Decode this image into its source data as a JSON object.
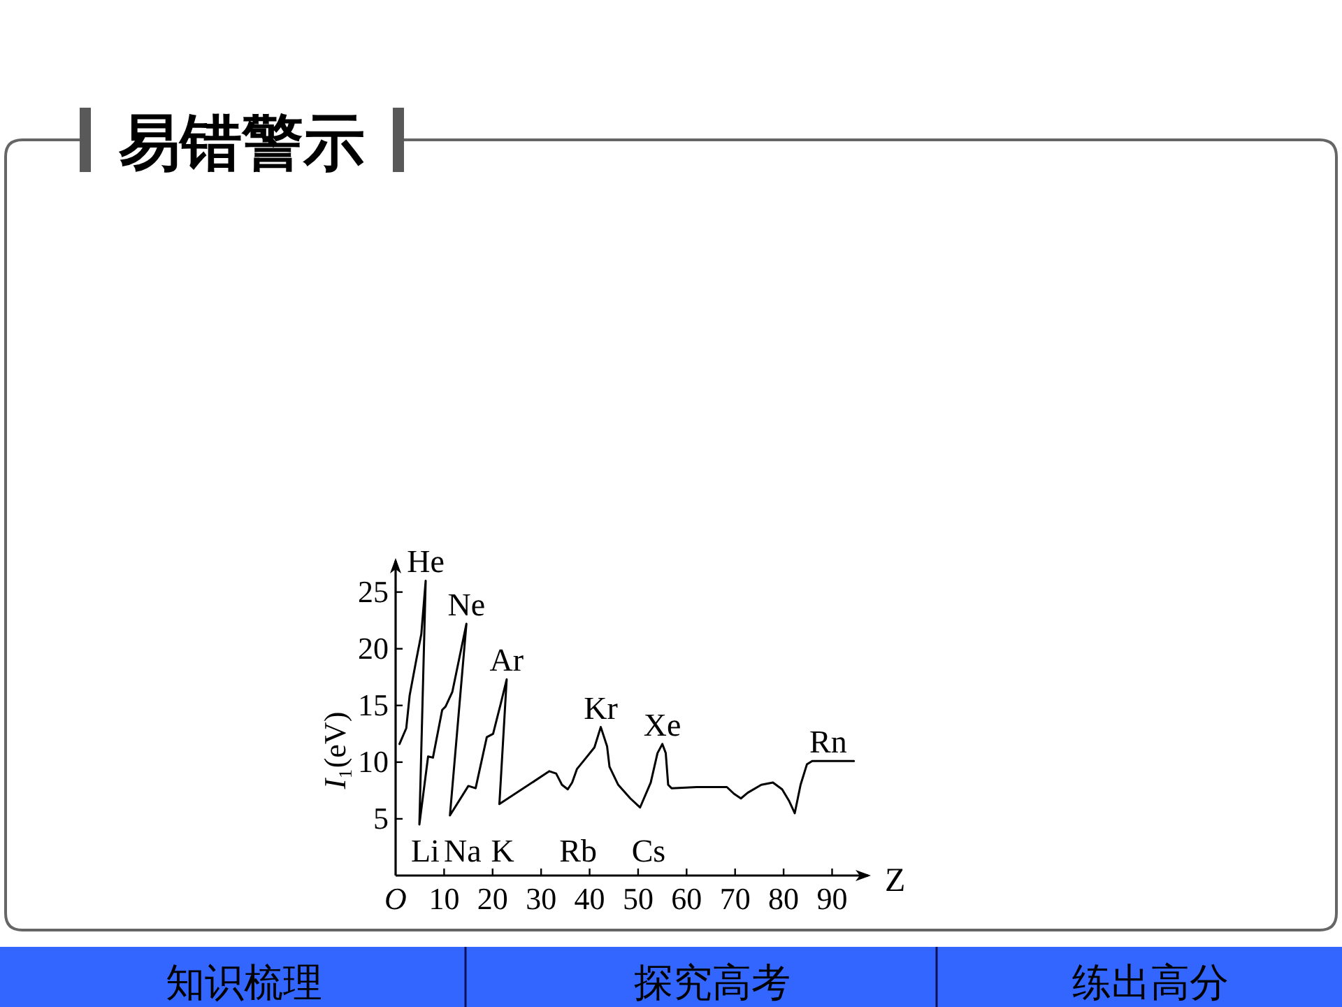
{
  "chart_data": {
    "type": "line",
    "title": "易错警示",
    "xlabel": "Z",
    "ylabel": "I₁(eV)",
    "xlim": [
      0,
      98
    ],
    "xticks": [
      {
        "value": 0,
        "label": "O"
      },
      10,
      20,
      30,
      40,
      50,
      60,
      70,
      80,
      90
    ],
    "ylim": [
      0,
      28
    ],
    "yticks": [
      5,
      10,
      15,
      20,
      25
    ],
    "line_style": "solid",
    "series": [
      {
        "color": "#000000",
        "x": [
          0.8,
          2.2,
          2.9,
          4.3,
          5.3,
          6.2,
          4.9,
          6.7,
          7.7,
          9.6,
          10.3,
          11.7,
          13.1,
          14.6,
          11.2,
          15.0,
          16.5,
          18.8,
          20.1,
          21.7,
          22.9,
          21.4,
          31.7,
          33.1,
          34.3,
          35.5,
          36.4,
          37.4,
          39.3,
          41.0,
          42.3,
          43.6,
          44.1,
          45.9,
          48.4,
          50.4,
          52.6,
          54.0,
          55.0,
          55.7,
          56.2,
          56.9,
          62.1,
          68.3,
          69.8,
          71.2,
          72.6,
          75.4,
          77.8,
          79.7,
          81.1,
          82.3,
          83.5,
          84.8,
          85.9,
          94.5
        ],
        "values": [
          11.6,
          13.0,
          15.9,
          19.1,
          21.3,
          26.0,
          4.5,
          10.5,
          10.4,
          14.6,
          14.9,
          16.2,
          19.1,
          22.2,
          5.3,
          7.9,
          7.7,
          12.2,
          12.5,
          15.2,
          17.3,
          6.3,
          9.2,
          9.0,
          8.0,
          7.6,
          8.2,
          9.4,
          10.4,
          11.3,
          13.1,
          11.4,
          9.6,
          8.0,
          6.8,
          6.0,
          8.2,
          10.8,
          11.6,
          10.8,
          8.0,
          7.7,
          7.8,
          7.8,
          7.2,
          6.8,
          7.3,
          8.0,
          8.2,
          7.6,
          6.6,
          5.5,
          8.0,
          9.8,
          10.1,
          10.1
        ]
      }
    ],
    "annotations": [
      {
        "text": "He",
        "x": 6.2,
        "y": 26.0
      },
      {
        "text": "Ne",
        "x": 14.6,
        "y": 22.2
      },
      {
        "text": "Ar",
        "x": 22.9,
        "y": 17.3
      },
      {
        "text": "Kr",
        "x": 42.3,
        "y": 13.1
      },
      {
        "text": "Xe",
        "x": 55.0,
        "y": 11.6
      },
      {
        "text": "Rn",
        "x": 89.2,
        "y": 10.1
      },
      {
        "text": "Li",
        "x": 4.9,
        "y": 4.5
      },
      {
        "text": "Na",
        "x": 11.2,
        "y": 5.3
      },
      {
        "text": "K",
        "x": 21.4,
        "y": 6.3
      },
      {
        "text": "Rb",
        "x": 35.5,
        "y": 7.6
      },
      {
        "text": "Cs",
        "x": 50.4,
        "y": 6.0
      },
      "知识梳理",
      "探究高考",
      "练出高分"
    ]
  }
}
